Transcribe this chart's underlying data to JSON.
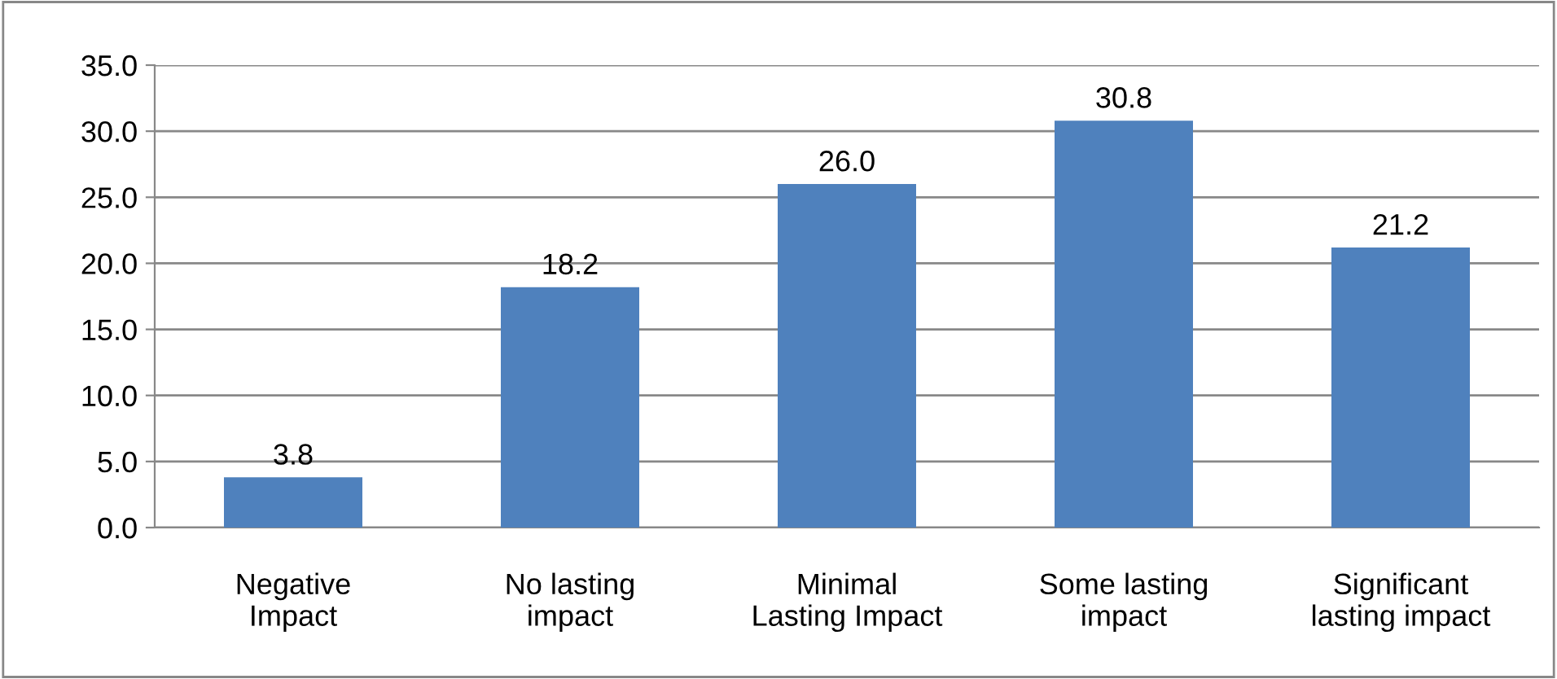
{
  "chart_data": {
    "type": "bar",
    "categories": [
      "Negative\nImpact",
      "No lasting\nimpact",
      "Minimal\nLasting Impact",
      "Some lasting\nimpact",
      "Significant\nlasting impact"
    ],
    "values": [
      3.8,
      18.2,
      26.0,
      30.8,
      21.2
    ],
    "color": "#4f81bd",
    "value_labels": [
      "3.8",
      "18.2",
      "26.0",
      "30.8",
      "21.2"
    ],
    "ylim": [
      0,
      35
    ],
    "yticks": [
      {
        "value": 0,
        "label": "0.0"
      },
      {
        "value": 5,
        "label": "5.0"
      },
      {
        "value": 10,
        "label": "10.0"
      },
      {
        "value": 15,
        "label": "15.0"
      },
      {
        "value": 20,
        "label": "20.0"
      },
      {
        "value": 25,
        "label": "25.0"
      },
      {
        "value": 30,
        "label": "30.0"
      },
      {
        "value": 35,
        "label": "35.0"
      }
    ],
    "grid": "y",
    "legend": false
  }
}
